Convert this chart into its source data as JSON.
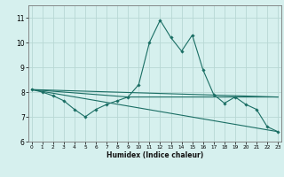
{
  "title": "",
  "xlabel": "Humidex (Indice chaleur)",
  "bg_color": "#d6f0ee",
  "grid_color": "#b8d8d4",
  "line_color": "#1a6e64",
  "x_ticks": [
    0,
    1,
    2,
    3,
    4,
    5,
    6,
    7,
    8,
    9,
    10,
    11,
    12,
    13,
    14,
    15,
    16,
    17,
    18,
    19,
    20,
    21,
    22,
    23
  ],
  "ylim": [
    6.0,
    11.5
  ],
  "xlim": [
    -0.3,
    23.3
  ],
  "yticks": [
    6,
    7,
    8,
    9,
    10,
    11
  ],
  "series1_x": [
    0,
    1,
    2,
    3,
    4,
    5,
    6,
    7,
    8,
    9,
    10,
    11,
    12,
    13,
    14,
    15,
    16,
    17,
    18,
    19,
    20,
    21,
    22,
    23
  ],
  "series1_y": [
    8.1,
    8.0,
    7.85,
    7.65,
    7.3,
    7.0,
    7.3,
    7.5,
    7.65,
    7.8,
    8.3,
    10.0,
    10.9,
    10.2,
    9.65,
    10.3,
    8.9,
    7.9,
    7.55,
    7.8,
    7.5,
    7.3,
    6.6,
    6.4
  ],
  "series2_x": [
    0,
    23
  ],
  "series2_y": [
    8.1,
    7.8
  ],
  "series3_x": [
    0,
    23
  ],
  "series3_y": [
    8.1,
    6.4
  ],
  "series4_x": [
    0,
    9,
    23
  ],
  "series4_y": [
    8.1,
    7.8,
    7.8
  ]
}
